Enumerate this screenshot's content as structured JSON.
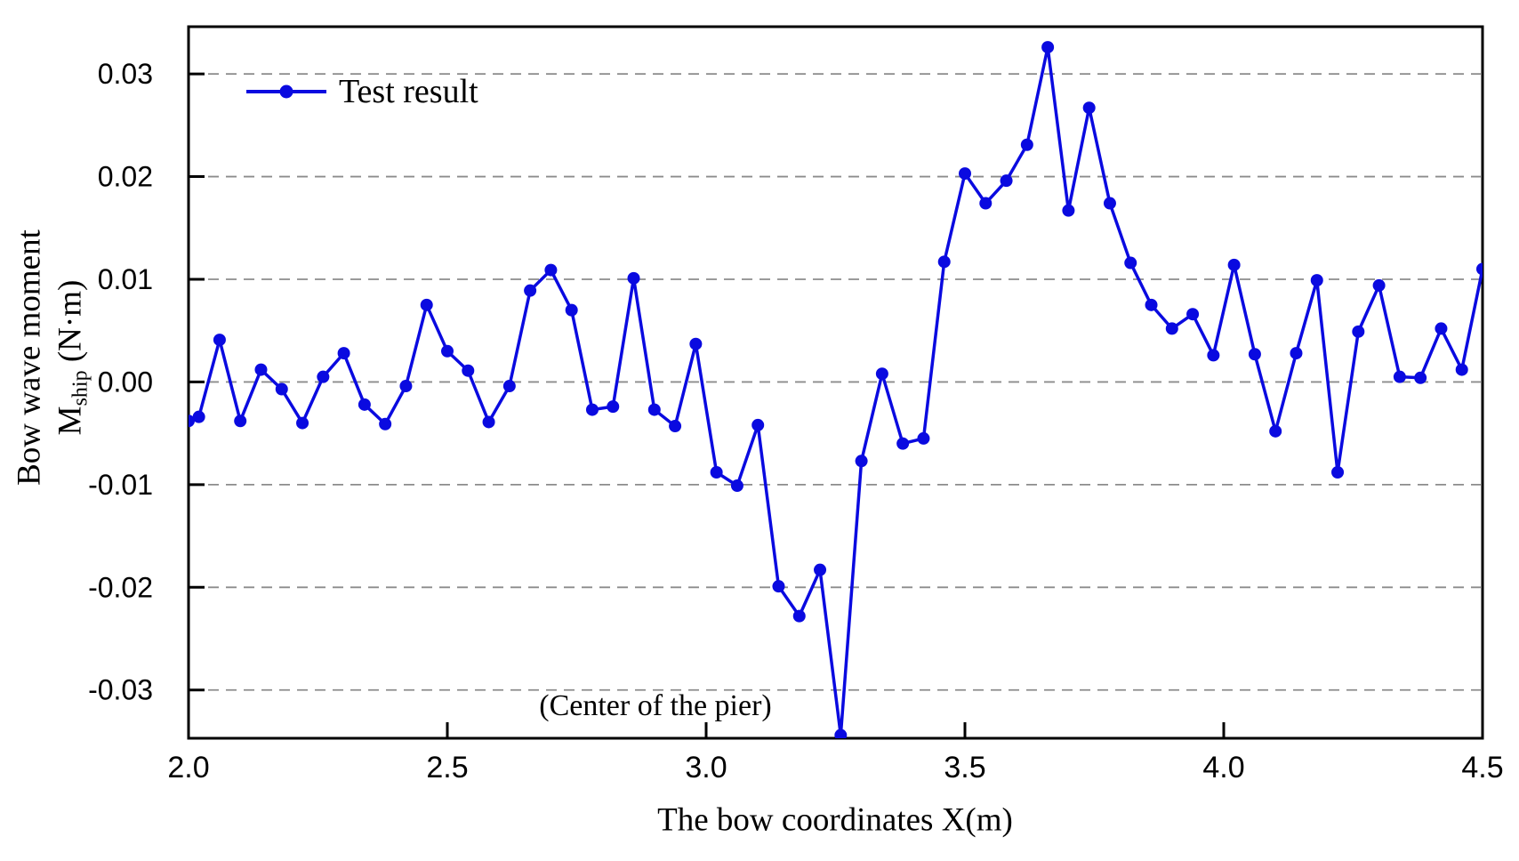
{
  "chart_data": {
    "type": "line",
    "title": "",
    "xlabel": "The bow coordinates X(m)",
    "ylabel": {
      "line1": "Bow wave moment",
      "symbol": "M",
      "subscript": "ship",
      "unit": " (N·m)"
    },
    "legend": {
      "label": "Test result",
      "position": "top-left-inside",
      "marker": "filled-circle-on-line"
    },
    "annotation": {
      "text": "(Center of the pier)",
      "points_at_x": 3.26
    },
    "xlim": [
      2.0,
      4.5
    ],
    "ylim": [
      -0.0347,
      0.0346
    ],
    "grid": {
      "horizontal": true,
      "vertical": false,
      "style": "dashed"
    },
    "x_ticks": {
      "values": [
        2.0,
        2.5,
        3.0,
        3.5,
        4.0,
        4.5
      ],
      "labels": [
        "2.0",
        "2.5",
        "3.0",
        "3.5",
        "4.0",
        "4.5"
      ]
    },
    "y_ticks": {
      "values": [
        0.03,
        0.02,
        0.01,
        0.0,
        -0.01,
        -0.02,
        -0.03
      ],
      "labels": [
        "0.03",
        "0.02",
        "0.01",
        "0.00",
        "-0.01",
        "-0.02",
        "-0.03"
      ]
    },
    "series": [
      {
        "name": "Test result",
        "color": "#0a0ae0",
        "marker": "circle",
        "x": [
          2.0,
          2.02,
          2.06,
          2.1,
          2.14,
          2.18,
          2.22,
          2.26,
          2.3,
          2.34,
          2.38,
          2.42,
          2.46,
          2.5,
          2.54,
          2.58,
          2.62,
          2.66,
          2.7,
          2.74,
          2.78,
          2.82,
          2.86,
          2.9,
          2.94,
          2.98,
          3.02,
          3.06,
          3.1,
          3.14,
          3.18,
          3.22,
          3.26,
          3.3,
          3.34,
          3.38,
          3.42,
          3.46,
          3.5,
          3.54,
          3.58,
          3.62,
          3.66,
          3.7,
          3.74,
          3.78,
          3.82,
          3.86,
          3.9,
          3.94,
          3.98,
          4.02,
          4.06,
          4.1,
          4.14,
          4.18,
          4.22,
          4.26,
          4.3,
          4.34,
          4.38,
          4.42,
          4.46,
          4.5
        ],
        "y": [
          -0.0038,
          -0.0034,
          0.0041,
          -0.0038,
          0.0012,
          -0.0007,
          -0.004,
          0.0005,
          0.0028,
          -0.0022,
          -0.0041,
          -0.0004,
          0.0075,
          0.003,
          0.0011,
          -0.0039,
          -0.0004,
          0.0089,
          0.0109,
          0.007,
          -0.0027,
          -0.0024,
          0.0101,
          -0.0027,
          -0.0043,
          0.0037,
          -0.0088,
          -0.0101,
          -0.0042,
          -0.0199,
          -0.0228,
          -0.0183,
          -0.0344,
          -0.0077,
          0.0008,
          -0.006,
          -0.0055,
          0.0117,
          0.0203,
          0.0174,
          0.0196,
          0.0231,
          0.0326,
          0.0167,
          0.0267,
          0.0174,
          0.0116,
          0.0075,
          0.0052,
          0.0066,
          0.0026,
          0.0114,
          0.0027,
          -0.0048,
          0.0028,
          0.0099,
          -0.0088,
          0.0049,
          0.0094,
          0.0005,
          0.0004,
          0.0052,
          0.0012,
          0.011
        ]
      }
    ]
  },
  "colors": {
    "line": "#0a0ae0",
    "grid": "#8c8c8c",
    "axis": "#000000",
    "background": "#ffffff"
  }
}
